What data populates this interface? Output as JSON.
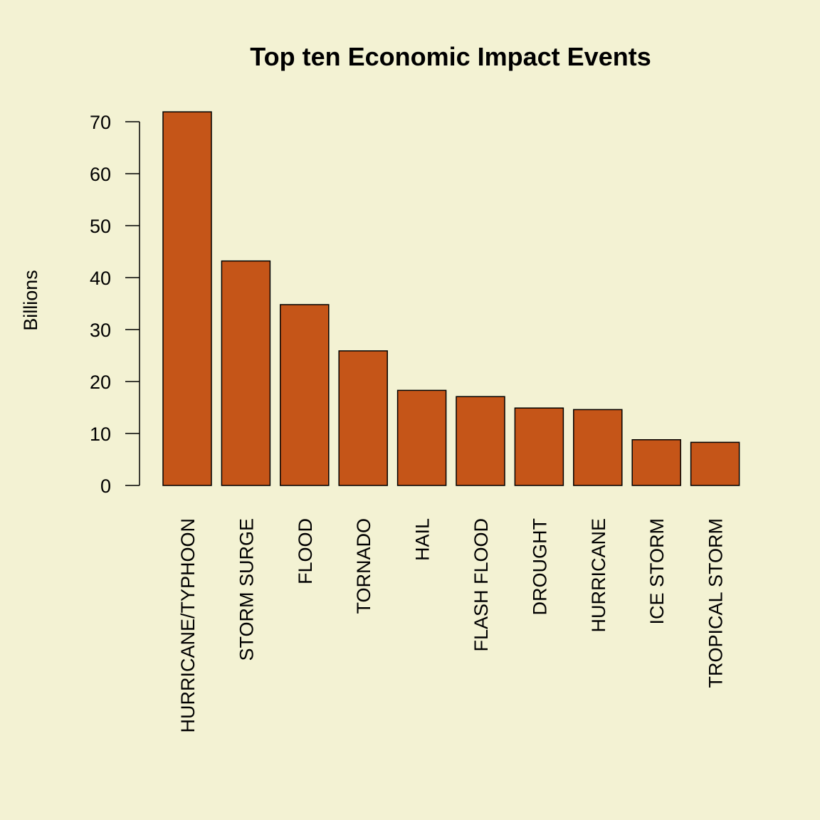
{
  "chart_data": {
    "type": "bar",
    "title": "Top ten Economic Impact Events",
    "ylabel": "Billions",
    "xlabel": "",
    "ylim": [
      0,
      70
    ],
    "yticks": [
      0,
      10,
      20,
      30,
      40,
      50,
      60,
      70
    ],
    "categories": [
      "HURRICANE/TYPHOON",
      "STORM SURGE",
      "FLOOD",
      "TORNADO",
      "HAIL",
      "FLASH FLOOD",
      "DROUGHT",
      "HURRICANE",
      "ICE STORM",
      "TROPICAL STORM"
    ],
    "values": [
      71.9,
      43.2,
      34.8,
      25.9,
      18.3,
      17.1,
      14.9,
      14.6,
      8.8,
      8.3
    ],
    "bar_color": "#C55518",
    "bar_border_color": "#000000",
    "background_color": "#F3F2D3",
    "grid": false
  }
}
